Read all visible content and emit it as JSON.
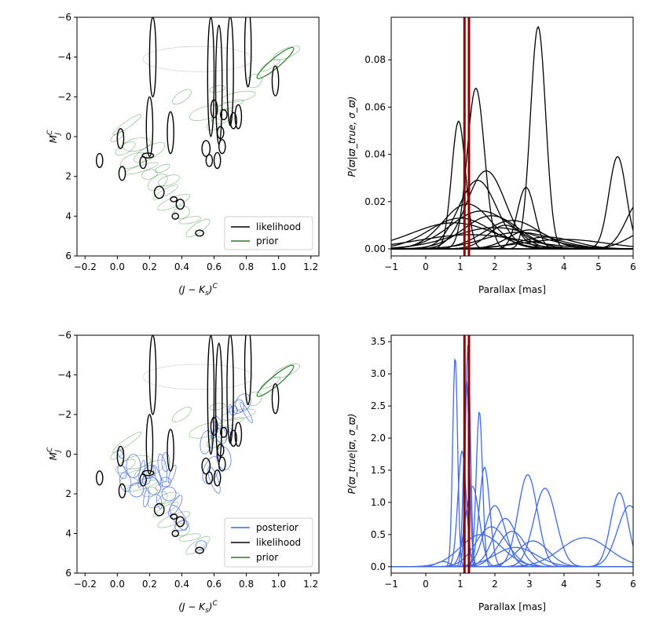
{
  "colors": {
    "likelihood": "#000000",
    "prior": "#2a7a2a",
    "posterior": "#4169e1",
    "marker": "#8b0000"
  },
  "chart_data": [
    {
      "id": "cmd_likelihood_prior",
      "type": "scatter",
      "title": "",
      "xlabel": "(J − K_s)^C",
      "ylabel": "M_J^C",
      "xlim": [
        -0.25,
        1.25
      ],
      "ylim": [
        6,
        -6
      ],
      "xticks": [
        -0.2,
        0.0,
        0.2,
        0.4,
        0.6,
        0.8,
        1.0,
        1.2
      ],
      "xtick_labels": [
        "−0.2",
        "0.0",
        "0.2",
        "0.4",
        "0.6",
        "0.8",
        "1.0",
        "1.2"
      ],
      "yticks": [
        -6,
        -4,
        -2,
        0,
        2,
        4,
        6
      ],
      "ytick_labels": [
        "−6",
        "−4",
        "−2",
        "0",
        "2",
        "4",
        "6"
      ],
      "legend": {
        "position": "bottom-right",
        "entries": [
          "likelihood",
          "prior"
        ]
      },
      "likelihood_ellipses": [
        {
          "x": -0.11,
          "y": 1.2,
          "w": 0.02,
          "h": 0.7
        },
        {
          "x": 0.02,
          "y": 0.1,
          "w": 0.02,
          "h": 1.0
        },
        {
          "x": 0.03,
          "y": 1.85,
          "w": 0.02,
          "h": 0.7
        },
        {
          "x": 0.16,
          "y": 1.3,
          "w": 0.02,
          "h": 0.6
        },
        {
          "x": 0.19,
          "y": 0.95,
          "w": 0.035,
          "h": 0.25
        },
        {
          "x": 0.2,
          "y": -0.5,
          "w": 0.02,
          "h": 3.0
        },
        {
          "x": 0.22,
          "y": -4.0,
          "w": 0.02,
          "h": 4.0
        },
        {
          "x": 0.26,
          "y": 2.8,
          "w": 0.03,
          "h": 0.6
        },
        {
          "x": 0.33,
          "y": -0.2,
          "w": 0.02,
          "h": 2.1
        },
        {
          "x": 0.35,
          "y": 3.15,
          "w": 0.02,
          "h": 0.25
        },
        {
          "x": 0.36,
          "y": 4.0,
          "w": 0.02,
          "h": 0.3
        },
        {
          "x": 0.39,
          "y": 3.4,
          "w": 0.025,
          "h": 0.5
        },
        {
          "x": 0.51,
          "y": 4.85,
          "w": 0.025,
          "h": 0.3
        },
        {
          "x": 0.55,
          "y": 0.6,
          "w": 0.025,
          "h": 0.8
        },
        {
          "x": 0.57,
          "y": 1.2,
          "w": 0.02,
          "h": 0.6
        },
        {
          "x": 0.58,
          "y": -3.0,
          "w": 0.02,
          "h": 6.0
        },
        {
          "x": 0.6,
          "y": -1.4,
          "w": 0.02,
          "h": 0.9
        },
        {
          "x": 0.62,
          "y": 1.2,
          "w": 0.02,
          "h": 0.8
        },
        {
          "x": 0.63,
          "y": -2.6,
          "w": 0.02,
          "h": 6.0
        },
        {
          "x": 0.64,
          "y": -0.2,
          "w": 0.02,
          "h": 0.6
        },
        {
          "x": 0.65,
          "y": 0.5,
          "w": 0.02,
          "h": 0.7
        },
        {
          "x": 0.66,
          "y": -1.1,
          "w": 0.02,
          "h": 0.5
        },
        {
          "x": 0.7,
          "y": -3.3,
          "w": 0.02,
          "h": 5.5
        },
        {
          "x": 0.72,
          "y": -0.8,
          "w": 0.02,
          "h": 0.8
        },
        {
          "x": 0.75,
          "y": -1.0,
          "w": 0.02,
          "h": 1.2
        },
        {
          "x": 0.81,
          "y": -4.5,
          "w": 0.02,
          "h": 4.0
        },
        {
          "x": 0.98,
          "y": -2.8,
          "w": 0.02,
          "h": 1.5
        }
      ]
    },
    {
      "id": "parallax_likelihood",
      "type": "line",
      "title": "",
      "xlabel": "Parallax [mas]",
      "ylabel": "P(ϖ|ϖ_true, σ_ϖ)",
      "xlim": [
        -1,
        6
      ],
      "ylim": [
        -0.003,
        0.098
      ],
      "xticks": [
        -1,
        0,
        1,
        2,
        3,
        4,
        5,
        6
      ],
      "xtick_labels": [
        "−1",
        "0",
        "1",
        "2",
        "3",
        "4",
        "5",
        "6"
      ],
      "yticks": [
        0.0,
        0.02,
        0.04,
        0.06,
        0.08
      ],
      "ytick_labels": [
        "0.00",
        "0.02",
        "0.04",
        "0.06",
        "0.08"
      ],
      "vlines": [
        1.12,
        1.25
      ],
      "series": [
        {
          "mu": 0.95,
          "sigma": 0.2,
          "peak": 0.054
        },
        {
          "mu": 1.45,
          "sigma": 0.25,
          "peak": 0.068
        },
        {
          "mu": 3.25,
          "sigma": 0.22,
          "peak": 0.094
        },
        {
          "mu": 5.55,
          "sigma": 0.25,
          "peak": 0.039
        },
        {
          "mu": 1.75,
          "sigma": 0.55,
          "peak": 0.033
        },
        {
          "mu": 1.5,
          "sigma": 0.55,
          "peak": 0.029
        },
        {
          "mu": 2.9,
          "sigma": 0.25,
          "peak": 0.026
        },
        {
          "mu": 1.2,
          "sigma": 0.7,
          "peak": 0.019
        },
        {
          "mu": 1.6,
          "sigma": 0.9,
          "peak": 0.016
        },
        {
          "mu": 1.9,
          "sigma": 0.8,
          "peak": 0.014
        },
        {
          "mu": 1.0,
          "sigma": 0.9,
          "peak": 0.013
        },
        {
          "mu": 2.5,
          "sigma": 0.8,
          "peak": 0.012
        },
        {
          "mu": 2.3,
          "sigma": 0.5,
          "peak": 0.01
        },
        {
          "mu": 2.0,
          "sigma": 1.2,
          "peak": 0.009
        },
        {
          "mu": 3.0,
          "sigma": 0.6,
          "peak": 0.008
        },
        {
          "mu": 0.8,
          "sigma": 1.2,
          "peak": 0.011
        },
        {
          "mu": 2.7,
          "sigma": 1.0,
          "peak": 0.007
        },
        {
          "mu": 6.2,
          "sigma": 0.4,
          "peak": 0.02
        },
        {
          "mu": 1.3,
          "sigma": 1.5,
          "peak": 0.006
        },
        {
          "mu": 3.5,
          "sigma": 0.8,
          "peak": 0.005
        },
        {
          "mu": 6.5,
          "sigma": 0.6,
          "peak": 0.008
        },
        {
          "mu": 4.0,
          "sigma": 1.2,
          "peak": 0.004
        }
      ]
    },
    {
      "id": "cmd_posterior",
      "type": "scatter",
      "title": "",
      "xlabel": "(J − K_s)^C",
      "ylabel": "M_J^C",
      "xlim": [
        -0.25,
        1.25
      ],
      "ylim": [
        6,
        -6
      ],
      "xticks": [
        -0.2,
        0.0,
        0.2,
        0.4,
        0.6,
        0.8,
        1.0,
        1.2
      ],
      "xtick_labels": [
        "−0.2",
        "0.0",
        "0.2",
        "0.4",
        "0.6",
        "0.8",
        "1.0",
        "1.2"
      ],
      "yticks": [
        -6,
        -4,
        -2,
        0,
        2,
        4,
        6
      ],
      "ytick_labels": [
        "−6",
        "−4",
        "−2",
        "0",
        "2",
        "4",
        "6"
      ],
      "legend": {
        "position": "bottom-right",
        "entries": [
          "posterior",
          "likelihood",
          "prior"
        ]
      }
    },
    {
      "id": "parallax_posterior",
      "type": "line",
      "title": "",
      "xlabel": "Parallax [mas]",
      "ylabel": "P(ϖ_true|ϖ, σ_ϖ)",
      "xlim": [
        -1,
        6
      ],
      "ylim": [
        -0.1,
        3.6
      ],
      "xticks": [
        -1,
        0,
        1,
        2,
        3,
        4,
        5,
        6
      ],
      "xtick_labels": [
        "−1",
        "0",
        "1",
        "2",
        "3",
        "4",
        "5",
        "6"
      ],
      "yticks": [
        0.0,
        0.5,
        1.0,
        1.5,
        2.0,
        2.5,
        3.0,
        3.5
      ],
      "ytick_labels": [
        "0.0",
        "0.5",
        "1.0",
        "1.5",
        "2.0",
        "2.5",
        "3.0",
        "3.5"
      ],
      "vlines": [
        1.12,
        1.25
      ],
      "series": [
        {
          "mu": 0.85,
          "sigma": 0.07,
          "peak": 3.28
        },
        {
          "mu": 1.22,
          "sigma": 0.07,
          "peak": 3.45
        },
        {
          "mu": 1.18,
          "sigma": 0.08,
          "peak": 2.9
        },
        {
          "mu": 1.55,
          "sigma": 0.09,
          "peak": 2.42
        },
        {
          "mu": 1.05,
          "sigma": 0.12,
          "peak": 1.8
        },
        {
          "mu": 1.7,
          "sigma": 0.15,
          "peak": 1.55
        },
        {
          "mu": 1.35,
          "sigma": 0.2,
          "peak": 1.25
        },
        {
          "mu": 2.95,
          "sigma": 0.28,
          "peak": 1.43
        },
        {
          "mu": 3.45,
          "sigma": 0.32,
          "peak": 1.22
        },
        {
          "mu": 5.6,
          "sigma": 0.25,
          "peak": 1.15
        },
        {
          "mu": 5.9,
          "sigma": 0.35,
          "peak": 0.95
        },
        {
          "mu": 4.6,
          "sigma": 0.7,
          "peak": 0.45
        },
        {
          "mu": 2.0,
          "sigma": 0.3,
          "peak": 0.95
        },
        {
          "mu": 2.3,
          "sigma": 0.35,
          "peak": 0.75
        },
        {
          "mu": 1.9,
          "sigma": 0.45,
          "peak": 0.62
        },
        {
          "mu": 2.5,
          "sigma": 0.4,
          "peak": 0.55
        },
        {
          "mu": 3.1,
          "sigma": 0.45,
          "peak": 0.4
        },
        {
          "mu": 1.6,
          "sigma": 0.6,
          "peak": 0.5
        },
        {
          "mu": 2.6,
          "sigma": 0.6,
          "peak": 0.3
        },
        {
          "mu": 0.5,
          "sigma": 0.2,
          "peak": 0.08
        }
      ]
    }
  ]
}
